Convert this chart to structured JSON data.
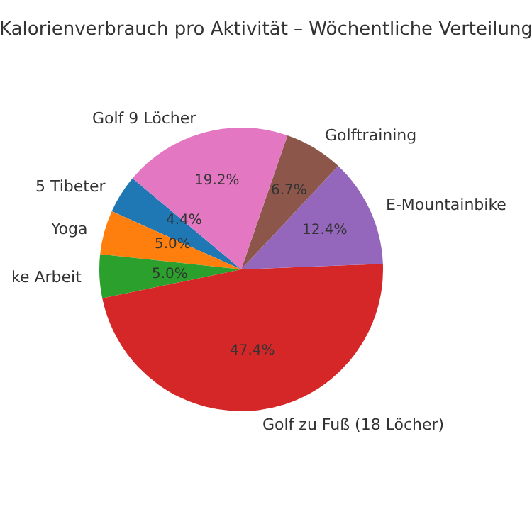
{
  "chart_data": {
    "type": "pie",
    "title": "Kalorienverbrauch pro Aktivität – Wöchentliche Verteilung",
    "categories": [
      "5 Tibeter",
      "Yoga",
      "ke Arbeit",
      "Golf zu Fuß (18 Löcher)",
      "E-Mountainbike",
      "Golftraining",
      "Golf 9 Löcher"
    ],
    "values": [
      4.4,
      5.0,
      5.0,
      47.4,
      12.4,
      6.7,
      19.2
    ],
    "value_labels": [
      "4.4%",
      "5.0%",
      "5.0%",
      "47.4%",
      "12.4%",
      "6.7%",
      "19.2%"
    ],
    "colors": [
      "#1f77b4",
      "#ff7f0e",
      "#2ca02c",
      "#d62728",
      "#9467bd",
      "#8c564b",
      "#e377c2"
    ],
    "legend": false
  }
}
